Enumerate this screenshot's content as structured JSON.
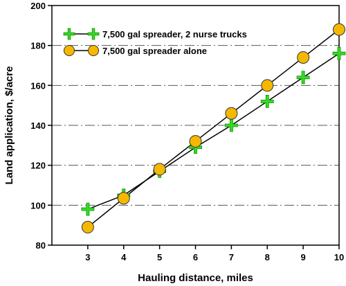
{
  "chart_data": {
    "type": "line",
    "title": "",
    "xlabel": "Hauling distance, miles",
    "ylabel": "Land application, $/acre",
    "xlim": [
      2,
      10
    ],
    "ylim": [
      80,
      200
    ],
    "x_ticks": [
      3,
      4,
      5,
      6,
      7,
      8,
      9,
      10
    ],
    "y_ticks": [
      80,
      100,
      120,
      140,
      160,
      180,
      200
    ],
    "grid": "horizontal dash-dot",
    "legend_position": "top-left",
    "series": [
      {
        "name": "7,500 gal spreader, 2 nurse trucks",
        "marker": "plus",
        "color": "#33dd22",
        "x": [
          3,
          4,
          5,
          6,
          7,
          8,
          9,
          10
        ],
        "y": [
          98,
          105,
          117,
          129,
          140,
          152,
          164,
          176
        ]
      },
      {
        "name": "7,500 gal spreader alone",
        "marker": "circle",
        "color": "#f5b800",
        "x": [
          3,
          4,
          5,
          6,
          7,
          8,
          9,
          10
        ],
        "y": [
          89,
          103.5,
          118,
          132,
          146,
          160,
          174,
          188
        ]
      }
    ]
  }
}
